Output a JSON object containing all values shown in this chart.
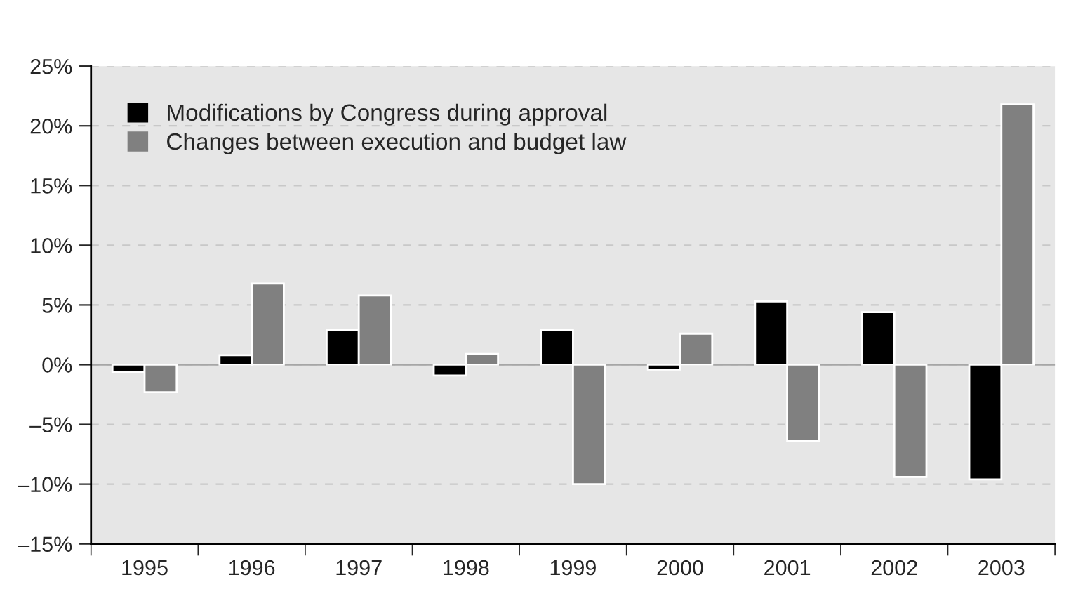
{
  "chart_data": {
    "type": "bar",
    "categories": [
      "1995",
      "1996",
      "1997",
      "1998",
      "1999",
      "2000",
      "2001",
      "2002",
      "2003"
    ],
    "series": [
      {
        "name": "Modifications by Congress during approval",
        "color": "#000000",
        "values": [
          -0.6,
          0.8,
          2.9,
          -0.9,
          2.9,
          -0.4,
          5.3,
          4.4,
          -9.6
        ]
      },
      {
        "name": "Changes between execution and budget law",
        "color": "#808080",
        "values": [
          -2.3,
          6.8,
          5.8,
          0.9,
          -10.0,
          2.6,
          -6.4,
          -9.4,
          21.8
        ]
      }
    ],
    "ylim": [
      -15,
      25
    ],
    "yticks": [
      {
        "value": -15,
        "label": "–15%"
      },
      {
        "value": -10,
        "label": "–10%"
      },
      {
        "value": -5,
        "label": "–5%"
      },
      {
        "value": 0,
        "label": "0%"
      },
      {
        "value": 5,
        "label": "5%"
      },
      {
        "value": 10,
        "label": "10%"
      },
      {
        "value": 15,
        "label": "15%"
      },
      {
        "value": 20,
        "label": "20%"
      },
      {
        "value": 25,
        "label": "25%"
      }
    ],
    "ref_lines": [
      {
        "axis": "y",
        "value": 0,
        "color": "#a6a6a6",
        "line_style": "solid"
      }
    ],
    "grid": "y",
    "legend": "top left"
  }
}
